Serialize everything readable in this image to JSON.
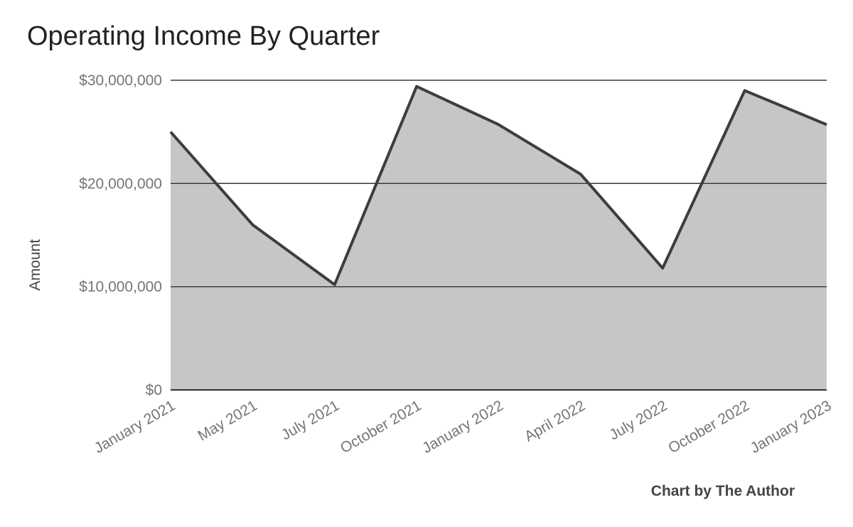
{
  "chart_data": {
    "type": "area",
    "title": "Operating Income By Quarter",
    "xlabel": "",
    "ylabel": "Amount",
    "categories": [
      "January 2021",
      "May 2021",
      "July 2021",
      "October 2021",
      "January 2022",
      "April 2022",
      "July 2022",
      "October 2022",
      "January 2023"
    ],
    "series": [
      {
        "values": [
          25000000,
          16000000,
          10200000,
          29400000,
          25700000,
          20900000,
          11800000,
          29000000,
          25700000
        ]
      }
    ],
    "yticks": [
      "$0",
      "$10,000,000",
      "$20,000,000",
      "$30,000,000"
    ],
    "ytick_values": [
      0,
      10000000,
      20000000,
      30000000
    ],
    "ylim": [
      0,
      30000000
    ],
    "grid": true,
    "legend": "none",
    "colors": {
      "fill": "#c6c6c6",
      "line": "#3d3d3d",
      "grid": "#333333"
    }
  },
  "footer": {
    "credit": "Chart by The Author"
  }
}
